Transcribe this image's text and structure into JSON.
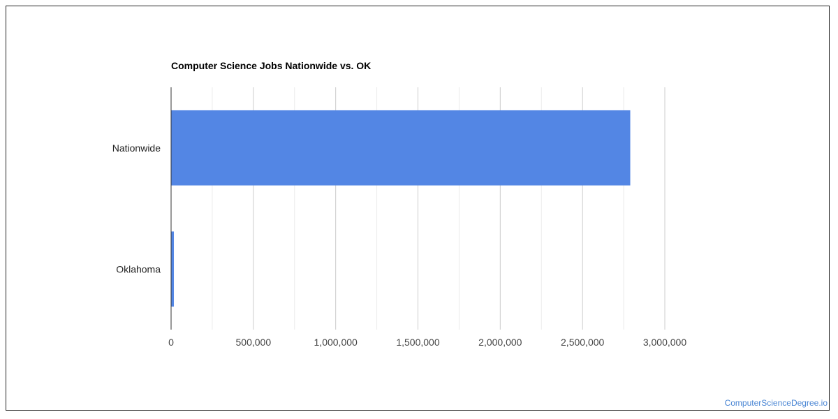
{
  "chart_data": {
    "type": "bar",
    "orientation": "horizontal",
    "title": "Computer Science Jobs Nationwide vs. OK",
    "categories": [
      "Nationwide",
      "Oklahoma"
    ],
    "values": [
      2790000,
      17000
    ],
    "xlim": [
      0,
      3000000
    ],
    "x_ticks": [
      0,
      500000,
      1000000,
      1500000,
      2000000,
      2500000,
      3000000
    ],
    "x_tick_labels": [
      "0",
      "500,000",
      "1,000,000",
      "1,500,000",
      "2,000,000",
      "2,500,000",
      "3,000,000"
    ],
    "grid": true,
    "bar_color": "#5386e4",
    "xlabel": "",
    "ylabel": ""
  },
  "watermark": "ComputerScienceDegree.io"
}
